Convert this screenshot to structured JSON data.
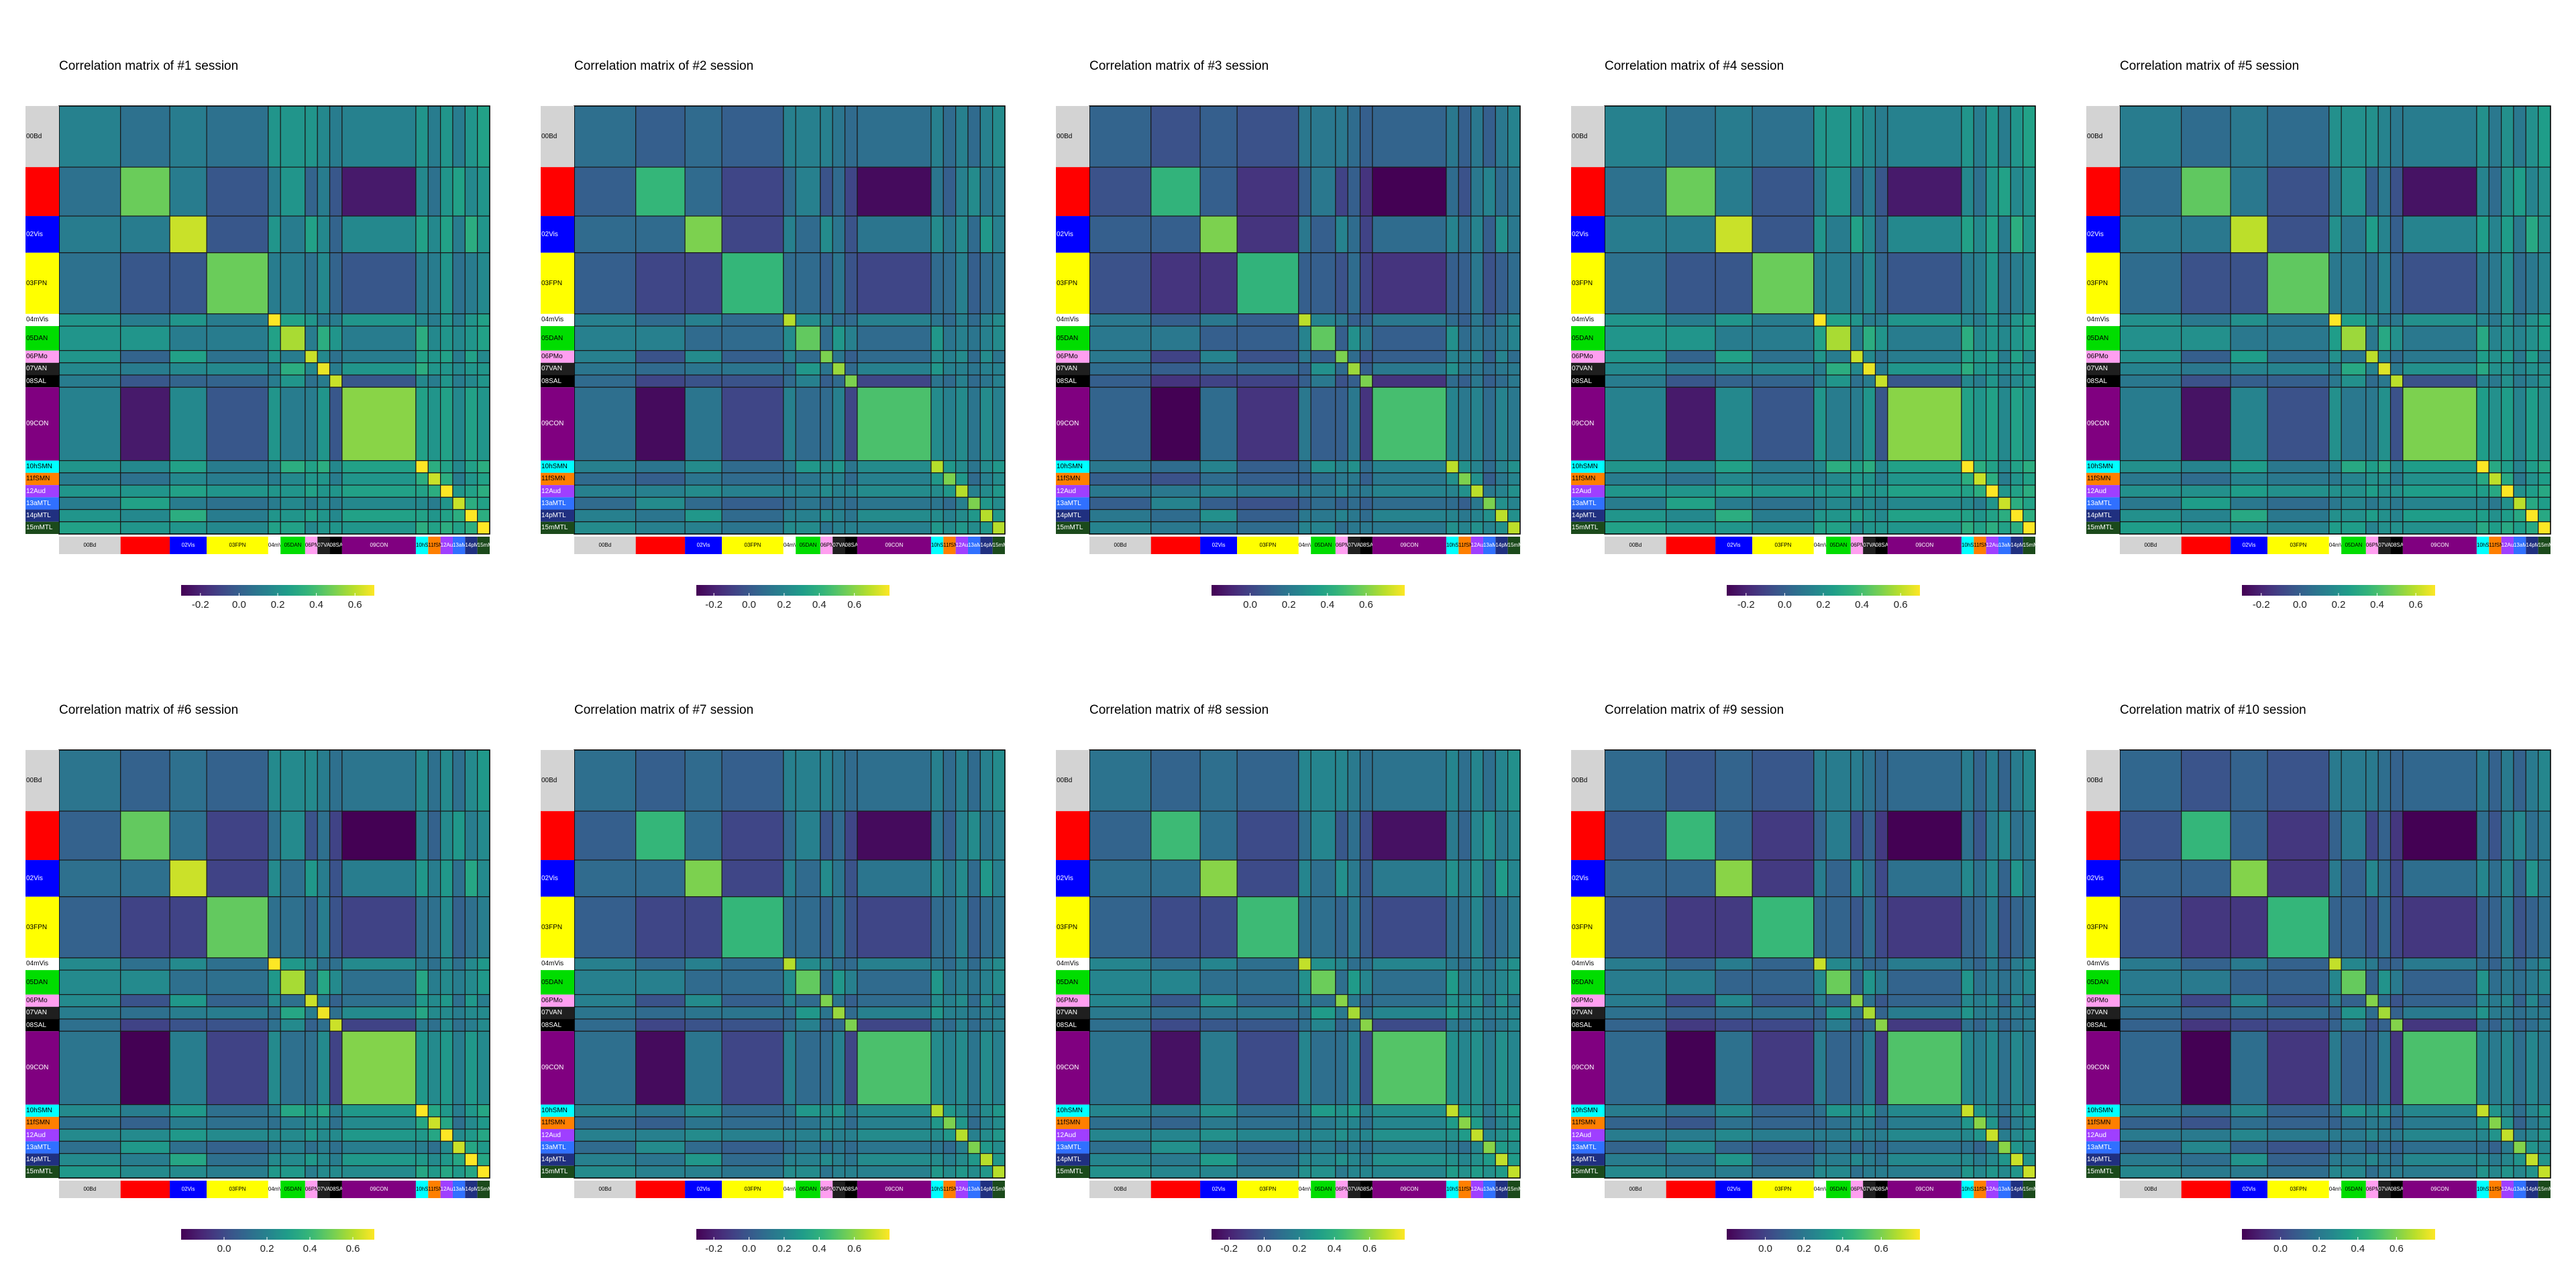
{
  "figure": {
    "panel_titles": [
      "Correlation matrix of #1 session",
      "Correlation matrix of #2 session",
      "Correlation matrix of #3 session",
      "Correlation matrix of #4 session",
      "Correlation matrix of #5 session",
      "Correlation matrix of #6 session",
      "Correlation matrix of #7 session",
      "Correlation matrix of #8 session",
      "Correlation matrix of #9 session",
      "Correlation matrix of #10 session"
    ]
  },
  "chart_data": {
    "type": "heatmap",
    "networks": [
      {
        "row_label": "00Bd",
        "col_label": "00Bd",
        "color": "#d3d3d3",
        "size": 5,
        "text_color": "#000000"
      },
      {
        "row_label": "01DMN",
        "col_label": "01DMN",
        "color": "#ff0000",
        "size": 4,
        "text_color": "#ff0000"
      },
      {
        "row_label": "02Vis",
        "col_label": "02Vis",
        "color": "#0000ff",
        "size": 3,
        "text_color": "#ffffff"
      },
      {
        "row_label": "03FPN",
        "col_label": "03FPN",
        "color": "#ffff00",
        "size": 5,
        "text_color": "#000000"
      },
      {
        "row_label": "04mVis",
        "col_label": "04mVis",
        "color": "#ffffff",
        "size": 1,
        "text_color": "#000000"
      },
      {
        "row_label": "05DAN",
        "col_label": "05DAN",
        "color": "#00dd00",
        "size": 2,
        "text_color": "#000000"
      },
      {
        "row_label": "06PMo",
        "col_label": "06PMo",
        "color": "#ff9ff0",
        "size": 1,
        "text_color": "#000000"
      },
      {
        "row_label": "07VAN",
        "col_label": "07VAN",
        "color": "#1f1f1f",
        "size": 1,
        "text_color": "#ffffff"
      },
      {
        "row_label": "08SAL",
        "col_label": "08SAL",
        "color": "#000000",
        "size": 1,
        "text_color": "#ffffff"
      },
      {
        "row_label": "09CON",
        "col_label": "09CON",
        "color": "#800080",
        "size": 6,
        "text_color": "#ffffff"
      },
      {
        "row_label": "10hSMN",
        "col_label": "10hSMN",
        "color": "#00ffff",
        "size": 1,
        "text_color": "#000000"
      },
      {
        "row_label": "11fSMN",
        "col_label": "11fSMN",
        "color": "#ff7f00",
        "size": 1,
        "text_color": "#000000"
      },
      {
        "row_label": "12Aud",
        "col_label": "12Aud",
        "color": "#9f3fff",
        "size": 1,
        "text_color": "#ffffff"
      },
      {
        "row_label": "13aMTL",
        "col_label": "13aMTL",
        "color": "#3070ff",
        "size": 1,
        "text_color": "#ffffff"
      },
      {
        "row_label": "14pMTL",
        "col_label": "14pMTL",
        "color": "#203080",
        "size": 1,
        "text_color": "#ffffff"
      },
      {
        "row_label": "15mMTL",
        "col_label": "15mMTL",
        "color": "#1b4a1b",
        "size": 1,
        "text_color": "#ffffff"
      }
    ],
    "colorbar": [
      {
        "ticks": [
          "-0.2",
          "0.0",
          "0.2",
          "0.4",
          "0.6"
        ],
        "values": [
          -0.2,
          0.0,
          0.2,
          0.4,
          0.6
        ],
        "range": [
          -0.3,
          0.7
        ]
      },
      {
        "ticks": [
          "-0.2",
          "0.0",
          "0.2",
          "0.4",
          "0.6"
        ],
        "values": [
          -0.2,
          0.0,
          0.2,
          0.4,
          0.6
        ],
        "range": [
          -0.3,
          0.8
        ]
      },
      {
        "ticks": [
          "0.0",
          "0.2",
          "0.4",
          "0.6"
        ],
        "values": [
          0.0,
          0.2,
          0.4,
          0.6
        ],
        "range": [
          -0.2,
          0.8
        ]
      },
      {
        "ticks": [
          "-0.2",
          "0.0",
          "0.2",
          "0.4",
          "0.6"
        ],
        "values": [
          -0.2,
          0.0,
          0.2,
          0.4,
          0.6
        ],
        "range": [
          -0.3,
          0.7
        ]
      },
      {
        "ticks": [
          "-0.2",
          "0.0",
          "0.2",
          "0.4",
          "0.6"
        ],
        "values": [
          -0.2,
          0.0,
          0.2,
          0.4,
          0.6
        ],
        "range": [
          -0.3,
          0.7
        ]
      },
      {
        "ticks": [
          "0.0",
          "0.2",
          "0.4",
          "0.6"
        ],
        "values": [
          0.0,
          0.2,
          0.4,
          0.6
        ],
        "range": [
          -0.2,
          0.7
        ]
      },
      {
        "ticks": [
          "-0.2",
          "0.0",
          "0.2",
          "0.4",
          "0.6"
        ],
        "values": [
          -0.2,
          0.0,
          0.2,
          0.4,
          0.6
        ],
        "range": [
          -0.3,
          0.8
        ]
      },
      {
        "ticks": [
          "-0.2",
          "0.0",
          "0.2",
          "0.4",
          "0.6"
        ],
        "values": [
          -0.2,
          0.0,
          0.2,
          0.4,
          0.6
        ],
        "range": [
          -0.3,
          0.8
        ]
      },
      {
        "ticks": [
          "0.0",
          "0.2",
          "0.4",
          "0.6"
        ],
        "values": [
          0.0,
          0.2,
          0.4,
          0.6
        ],
        "range": [
          -0.2,
          0.8
        ]
      },
      {
        "ticks": [
          "0.0",
          "0.2",
          "0.4",
          "0.6"
        ],
        "values": [
          0.0,
          0.2,
          0.4,
          0.6
        ],
        "range": [
          -0.2,
          0.8
        ]
      }
    ],
    "colormap": "viridis",
    "block_means": {
      "base": [
        [
          0.12,
          0.05,
          0.1,
          0.05,
          0.2,
          0.2,
          0.2,
          0.15,
          0.1,
          0.12,
          0.2,
          0.1,
          0.2,
          0.1,
          0.2,
          0.25
        ],
        [
          0.05,
          0.45,
          0.1,
          -0.05,
          0.1,
          0.2,
          0.0,
          0.1,
          -0.05,
          -0.25,
          0.15,
          0.05,
          0.2,
          0.25,
          0.15,
          0.2
        ],
        [
          0.1,
          0.1,
          0.6,
          -0.05,
          0.2,
          0.1,
          0.25,
          0.15,
          0.0,
          0.15,
          0.25,
          0.15,
          0.25,
          0.1,
          0.3,
          0.2
        ],
        [
          0.05,
          -0.05,
          -0.05,
          0.45,
          0.1,
          0.1,
          0.05,
          0.15,
          0.0,
          -0.05,
          0.1,
          0.1,
          0.2,
          0.05,
          0.1,
          0.15
        ],
        [
          0.2,
          0.1,
          0.2,
          0.1,
          0.7,
          0.25,
          0.2,
          0.1,
          0.1,
          0.2,
          0.15,
          0.1,
          0.2,
          0.1,
          0.2,
          0.25
        ],
        [
          0.2,
          0.2,
          0.1,
          0.1,
          0.25,
          0.55,
          0.1,
          0.3,
          0.2,
          0.1,
          0.3,
          0.15,
          0.2,
          0.15,
          0.2,
          0.25
        ],
        [
          0.2,
          0.0,
          0.25,
          0.05,
          0.2,
          0.1,
          0.6,
          0.15,
          0.05,
          0.1,
          0.25,
          0.2,
          0.25,
          0.1,
          0.25,
          0.15
        ],
        [
          0.15,
          0.1,
          0.15,
          0.15,
          0.1,
          0.3,
          0.15,
          0.65,
          0.1,
          0.2,
          0.3,
          0.2,
          0.2,
          0.15,
          0.2,
          0.2
        ],
        [
          0.1,
          -0.05,
          0.0,
          0.0,
          0.1,
          0.2,
          0.05,
          0.1,
          0.6,
          -0.05,
          0.15,
          0.1,
          0.2,
          0.1,
          0.15,
          0.2
        ],
        [
          0.12,
          -0.25,
          0.15,
          -0.05,
          0.2,
          0.1,
          0.1,
          0.2,
          -0.05,
          0.5,
          0.25,
          0.2,
          0.25,
          0.15,
          0.25,
          0.2
        ],
        [
          0.2,
          0.15,
          0.25,
          0.1,
          0.15,
          0.3,
          0.25,
          0.3,
          0.15,
          0.25,
          0.7,
          0.3,
          0.25,
          0.15,
          0.25,
          0.3
        ],
        [
          0.1,
          0.05,
          0.15,
          0.1,
          0.1,
          0.15,
          0.2,
          0.2,
          0.1,
          0.2,
          0.3,
          0.6,
          0.3,
          0.1,
          0.2,
          0.25
        ],
        [
          0.2,
          0.2,
          0.25,
          0.2,
          0.2,
          0.2,
          0.25,
          0.2,
          0.2,
          0.25,
          0.25,
          0.3,
          0.7,
          0.2,
          0.25,
          0.3
        ],
        [
          0.1,
          0.25,
          0.1,
          0.05,
          0.1,
          0.15,
          0.1,
          0.15,
          0.1,
          0.15,
          0.15,
          0.1,
          0.2,
          0.6,
          0.3,
          0.25
        ],
        [
          0.2,
          0.15,
          0.3,
          0.1,
          0.2,
          0.2,
          0.25,
          0.2,
          0.15,
          0.25,
          0.25,
          0.2,
          0.25,
          0.3,
          0.7,
          0.3
        ],
        [
          0.25,
          0.2,
          0.2,
          0.15,
          0.25,
          0.25,
          0.15,
          0.2,
          0.2,
          0.2,
          0.3,
          0.25,
          0.3,
          0.25,
          0.3,
          0.7
        ]
      ],
      "session_offsets": [
        0.02,
        -0.02,
        0.0,
        0.02,
        0.0,
        0.03,
        -0.02,
        0.0,
        0.02,
        0.01
      ]
    }
  }
}
